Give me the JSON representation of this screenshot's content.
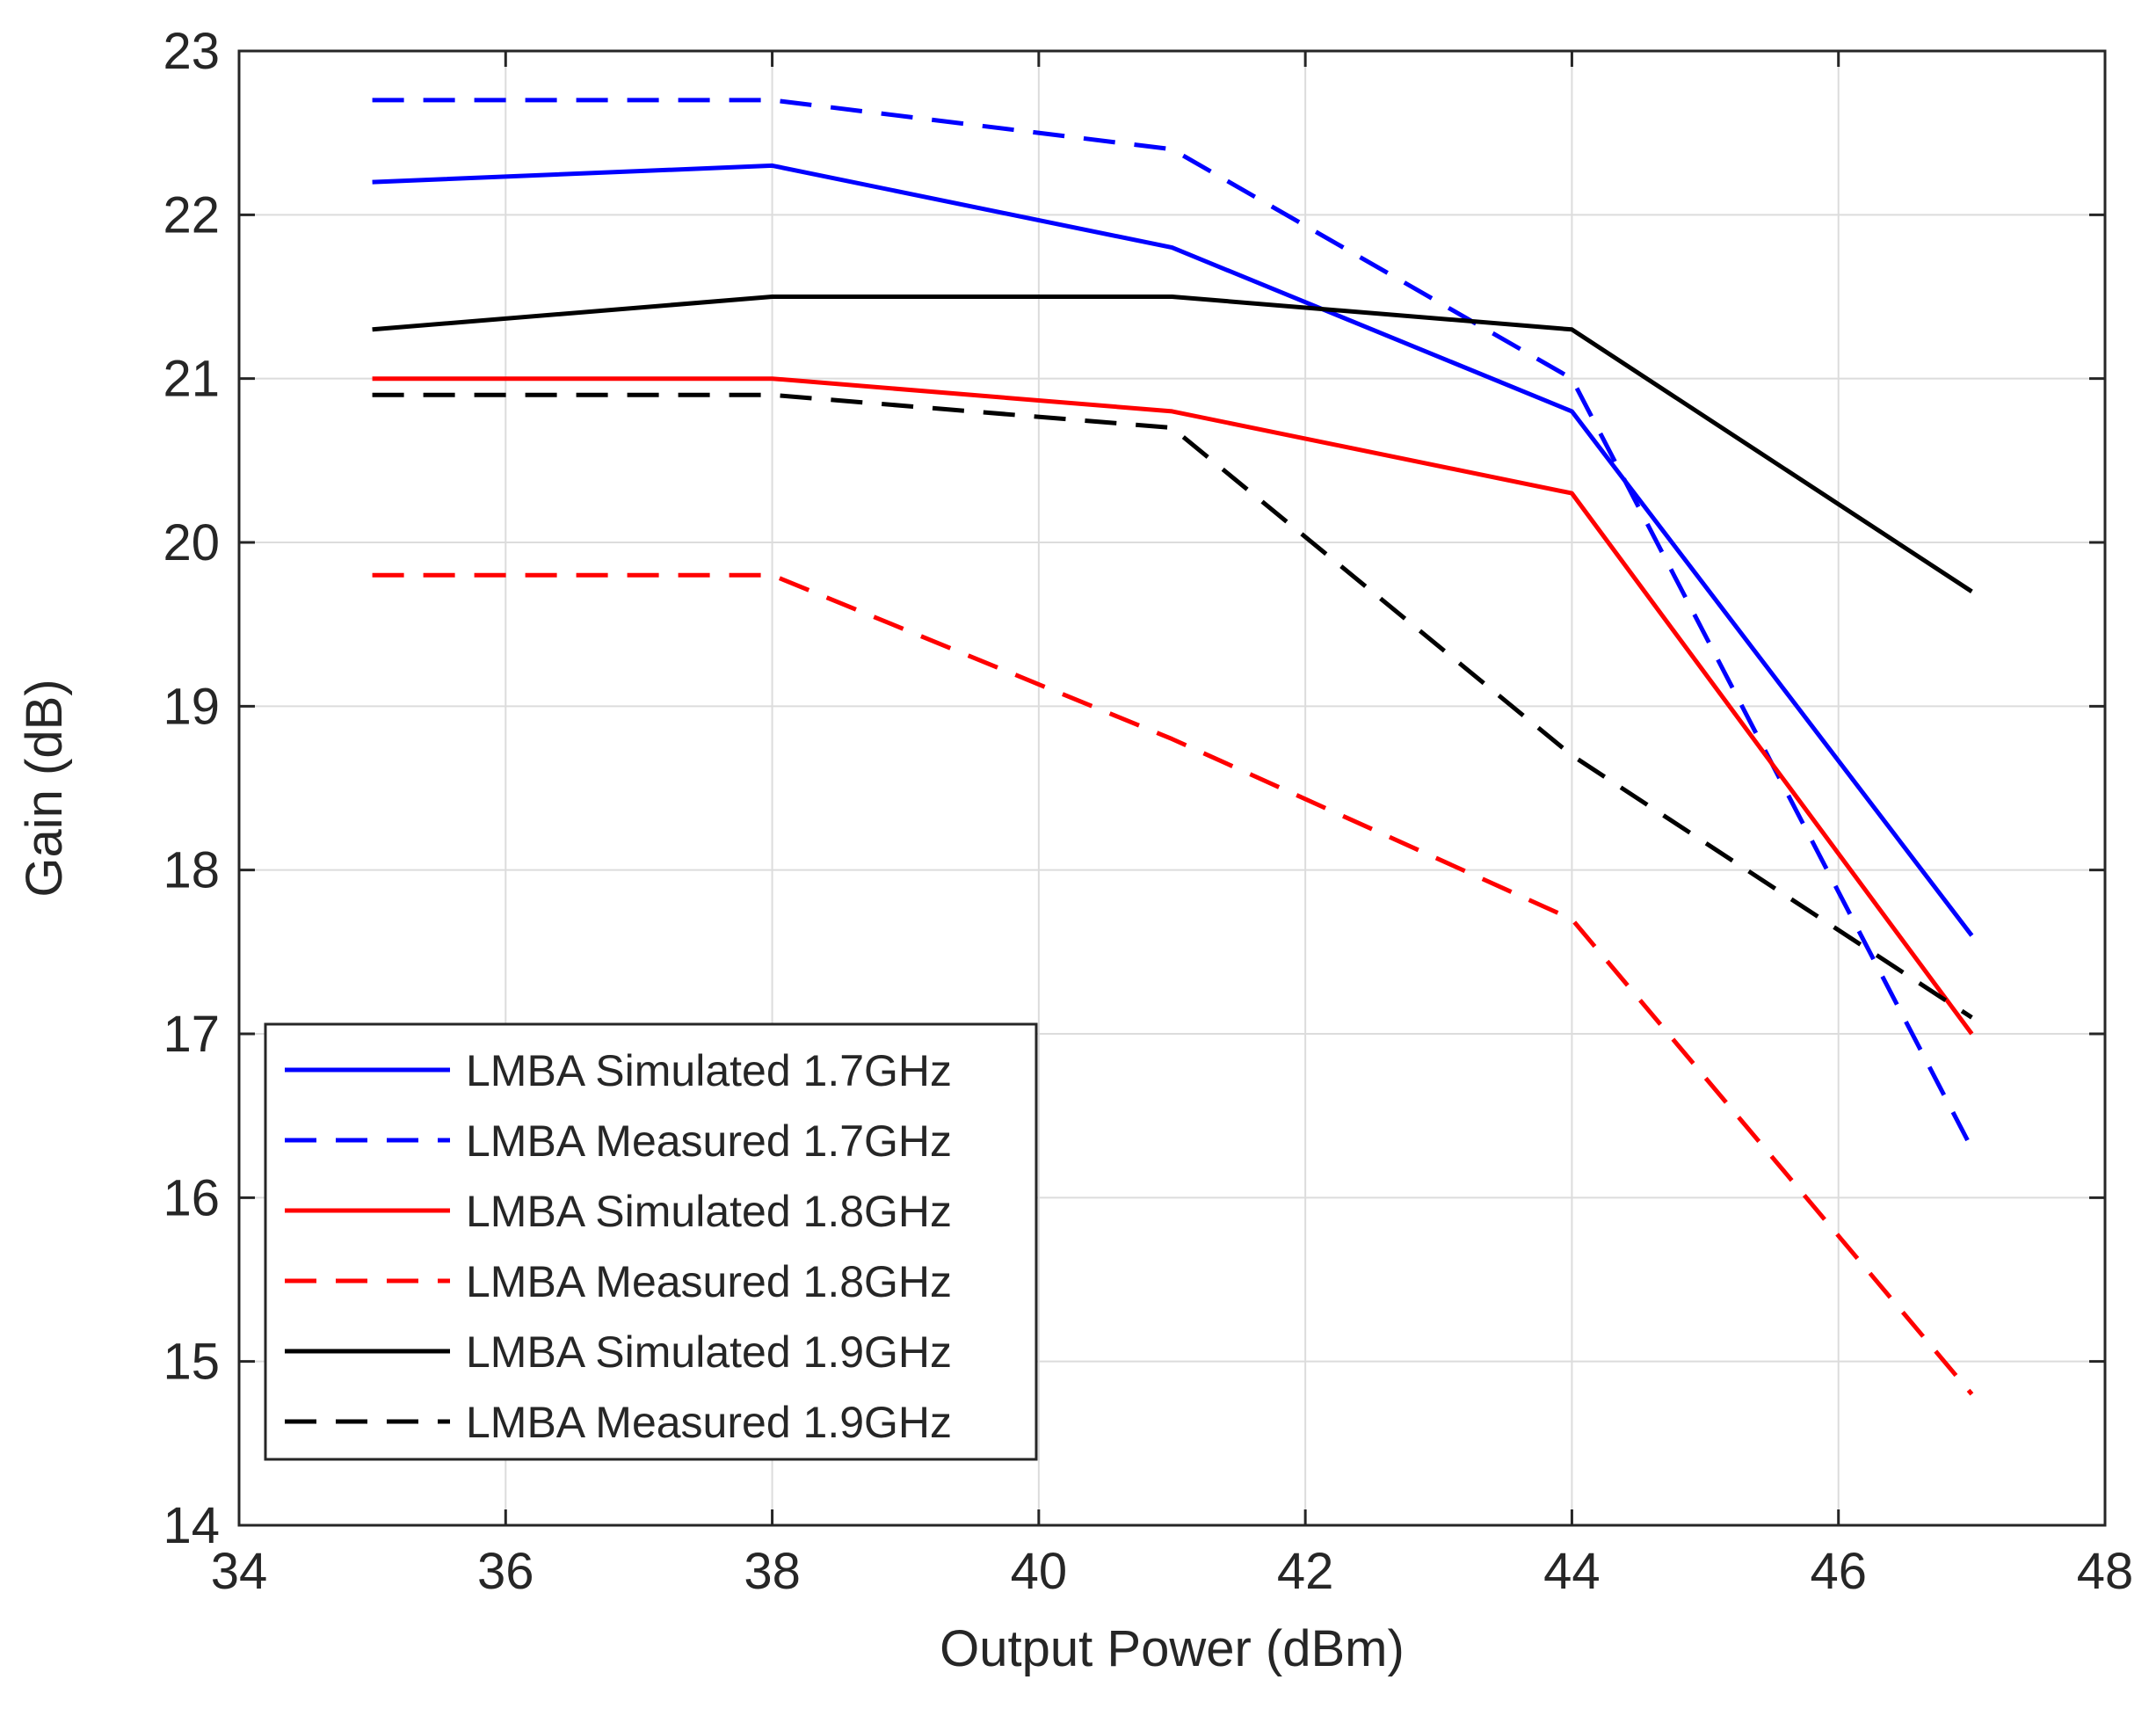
{
  "chart_data": {
    "type": "line",
    "title": "",
    "xlabel": "Output Power (dBm)",
    "ylabel": "Gain (dB)",
    "xlim": [
      34,
      48
    ],
    "ylim": [
      14,
      23
    ],
    "xticks": [
      "34",
      "36",
      "38",
      "40",
      "42",
      "44",
      "46",
      "48"
    ],
    "yticks": [
      "14",
      "15",
      "16",
      "17",
      "18",
      "19",
      "20",
      "21",
      "22",
      "23"
    ],
    "grid": true,
    "legend_position": "bottom-left",
    "x": [
      35,
      38,
      41,
      44,
      47
    ],
    "series": [
      {
        "name": "LMBA Simulated 1.7GHz",
        "color": "#0000ff",
        "style": "solid",
        "values": [
          22.2,
          22.3,
          21.8,
          20.8,
          17.6
        ]
      },
      {
        "name": "LMBA Measured 1.7GHz",
        "color": "#0000ff",
        "style": "dashed",
        "values": [
          22.7,
          22.7,
          22.4,
          21.0,
          16.3
        ]
      },
      {
        "name": "LMBA Simulated 1.8GHz",
        "color": "#ff0000",
        "style": "solid",
        "values": [
          21.0,
          21.0,
          20.8,
          20.3,
          17.0
        ]
      },
      {
        "name": "LMBA Measured 1.8GHz",
        "color": "#ff0000",
        "style": "dashed",
        "values": [
          19.8,
          19.8,
          18.8,
          17.7,
          14.8
        ]
      },
      {
        "name": "LMBA Simulated 1.9GHz",
        "color": "#000000",
        "style": "solid",
        "values": [
          21.3,
          21.5,
          21.5,
          21.3,
          19.7
        ]
      },
      {
        "name": "LMBA Measured 1.9GHz",
        "color": "#000000",
        "style": "dashed",
        "values": [
          20.9,
          20.9,
          20.7,
          18.7,
          17.1
        ]
      }
    ]
  }
}
